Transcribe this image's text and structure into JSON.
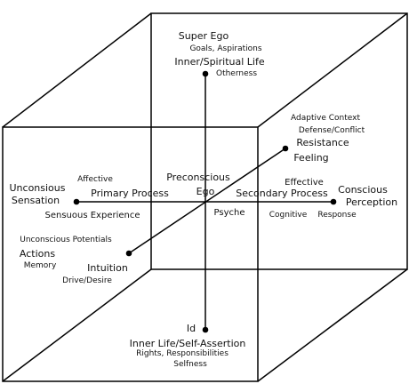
{
  "colors": {
    "line": "#000000",
    "background": "#ffffff"
  },
  "top": {
    "super_ego": "Super Ego",
    "goals": "Goals, Aspirations",
    "inner_spiritual": "Inner/Spiritual Life",
    "otherness": "Otherness"
  },
  "upper_right": {
    "adaptive": "Adaptive Context",
    "defense": "Defense/Conflict",
    "resistance": "Resistance",
    "feeling": "Feeling"
  },
  "left": {
    "unconscious": "Unconsious",
    "sensation": "Sensation",
    "affective": "Affective",
    "primary_process": "Primary Process",
    "sensuous_experience": "Sensuous Experience"
  },
  "center": {
    "preconscious": "Preconscious",
    "ego": "Ego",
    "psyche": "Psyche"
  },
  "right": {
    "effective": "Effective",
    "secondary_process": "Secondary Process",
    "conscious": "Conscious",
    "perception": "Perception",
    "cognitive": "Cognitive",
    "response": "Response"
  },
  "lower_left": {
    "unconscious_potentials": "Unconscious Potentials",
    "actions": "Actions",
    "memory": "Memory",
    "intuition": "Intuition",
    "drive_desire": "Drive/Desire"
  },
  "bottom": {
    "id": "Id",
    "inner_life": "Inner Life/Self-Assertion",
    "rights": "Rights, Responsibilities",
    "selfness": "Selfness"
  }
}
